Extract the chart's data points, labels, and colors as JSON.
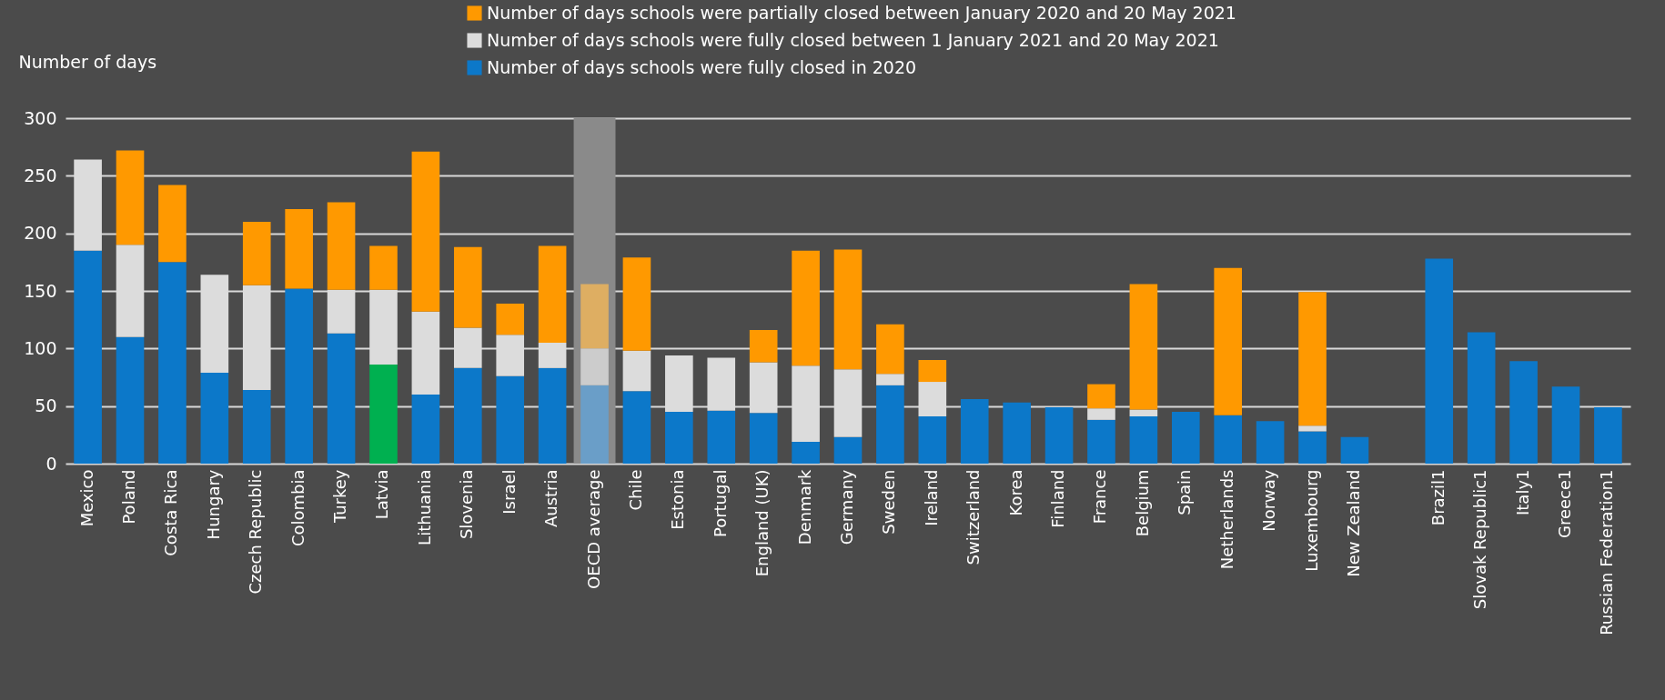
{
  "chart_data": {
    "type": "bar",
    "stacked": true,
    "ylabel": "Number of days",
    "legend": "top",
    "grid": "y",
    "categories": [
      "Mexico",
      "Poland",
      "Costa Rica",
      "Hungary",
      "Czech Republic",
      "Colombia",
      "Turkey",
      "Latvia",
      "Lithuania",
      "Slovenia",
      "Israel",
      "Austria",
      "OECD average",
      "Chile",
      "Estonia",
      "Portugal",
      "England (UK)",
      "Denmark",
      "Germany",
      "Sweden",
      "Ireland",
      "Switzerland",
      "Korea",
      "Finland",
      "France",
      "Belgium",
      "Spain",
      "Netherlands",
      "Norway",
      "Luxembourg",
      "New Zealand",
      null,
      "Brazil1",
      "Slovak Republic1",
      "Italy1",
      "Greece1",
      "Russian Federation1"
    ],
    "series": [
      {
        "name": "Number of days schools were fully closed in 2020",
        "color": "#0c78c9",
        "values": [
          185,
          110,
          175,
          79,
          64,
          152,
          113,
          86,
          60,
          83,
          76,
          83,
          68,
          63,
          45,
          46,
          44,
          19,
          23,
          68,
          41,
          56,
          53,
          49,
          38,
          41,
          45,
          42,
          37,
          28,
          23,
          null,
          178,
          114,
          89,
          67,
          49
        ],
        "colors": [
          null,
          null,
          null,
          null,
          null,
          null,
          null,
          "#00b050",
          null,
          null,
          null,
          null,
          "#6a9ec8",
          null,
          null,
          null,
          null,
          null,
          null,
          null,
          null,
          null,
          null,
          null,
          null,
          null,
          null,
          null,
          null,
          null,
          null,
          null,
          null,
          null,
          null,
          null,
          null
        ]
      },
      {
        "name": "Number of days schools were fully closed between 1 January 2021 and 20 May 2021",
        "color": "#dcdcdc",
        "values": [
          79,
          80,
          0,
          85,
          91,
          0,
          38,
          65,
          72,
          35,
          36,
          22,
          32,
          35,
          49,
          46,
          44,
          66,
          59,
          10,
          30,
          0,
          0,
          0,
          10,
          6,
          0,
          0,
          0,
          5,
          0,
          null,
          0,
          0,
          0,
          0,
          0
        ],
        "colors": [
          null,
          null,
          null,
          null,
          null,
          null,
          null,
          null,
          null,
          null,
          null,
          null,
          "#cccccc",
          null,
          null,
          null,
          null,
          null,
          null,
          null,
          null,
          null,
          null,
          null,
          null,
          null,
          null,
          null,
          null,
          null,
          null,
          null,
          null,
          null,
          null,
          null,
          null
        ]
      },
      {
        "name": "Number of days schools were partially closed between January 2020 and 20 May 2021",
        "color": "#ff9900",
        "values": [
          0,
          82,
          67,
          0,
          55,
          69,
          76,
          38,
          139,
          70,
          27,
          84,
          56,
          81,
          0,
          0,
          28,
          100,
          104,
          43,
          19,
          0,
          0,
          0,
          21,
          109,
          0,
          128,
          0,
          116,
          0,
          null,
          0,
          0,
          0,
          0,
          0
        ],
        "colors": [
          null,
          null,
          null,
          null,
          null,
          null,
          null,
          null,
          null,
          null,
          null,
          null,
          "#deae62",
          null,
          null,
          null,
          null,
          null,
          null,
          null,
          null,
          null,
          null,
          null,
          null,
          null,
          null,
          null,
          null,
          null,
          null,
          null,
          null,
          null,
          null,
          null,
          null
        ]
      }
    ],
    "bands": [
      {
        "axis": "x",
        "from": "OECD average",
        "to": "OECD average",
        "color": "#8a8a8a"
      }
    ],
    "ylim": [
      0,
      300
    ],
    "yticks": [
      0,
      50,
      100,
      150,
      200,
      250,
      300
    ]
  }
}
